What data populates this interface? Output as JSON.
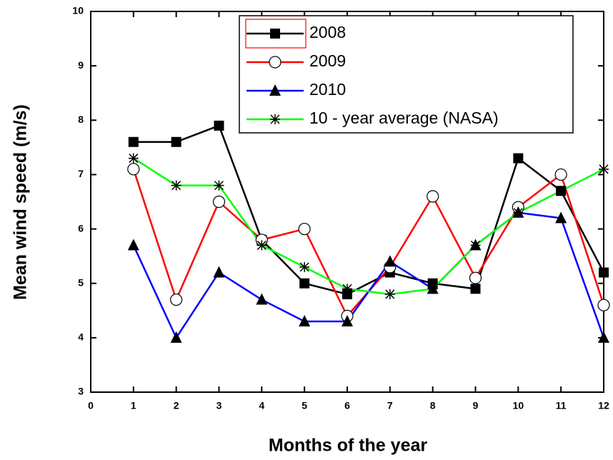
{
  "chart_data": {
    "type": "line",
    "xlabel": "Months of the year",
    "ylabel": "Mean wind speed (m/s)",
    "x": [
      1,
      2,
      3,
      4,
      5,
      6,
      7,
      8,
      9,
      10,
      11,
      12
    ],
    "xlim": [
      0,
      12
    ],
    "xticks": [
      0,
      1,
      2,
      3,
      4,
      5,
      6,
      7,
      8,
      9,
      10,
      11,
      12
    ],
    "ylim": [
      3,
      10
    ],
    "yticks": [
      3,
      4,
      5,
      6,
      7,
      8,
      9,
      10
    ],
    "series": [
      {
        "name": "2008",
        "color": "#000000",
        "marker": "square",
        "values": [
          7.6,
          7.6,
          7.9,
          5.8,
          5.0,
          4.8,
          5.2,
          5.0,
          4.9,
          7.3,
          6.7,
          5.2
        ]
      },
      {
        "name": "2009",
        "color": "#ff0000",
        "marker": "circle",
        "values": [
          7.1,
          4.7,
          6.5,
          5.8,
          6.0,
          4.4,
          5.3,
          6.6,
          5.1,
          6.4,
          7.0,
          4.6
        ]
      },
      {
        "name": "2010",
        "color": "#0000ff",
        "marker": "triangle",
        "values": [
          5.7,
          4.0,
          5.2,
          4.7,
          4.3,
          4.3,
          5.4,
          4.9,
          5.7,
          6.3,
          6.2,
          4.0
        ]
      },
      {
        "name": "10 - year average (NASA)",
        "color": "#00ff00",
        "marker": "asterisk",
        "values": [
          7.3,
          6.8,
          6.8,
          5.7,
          5.3,
          4.9,
          4.8,
          4.9,
          5.7,
          6.3,
          6.7,
          7.1
        ]
      }
    ]
  }
}
